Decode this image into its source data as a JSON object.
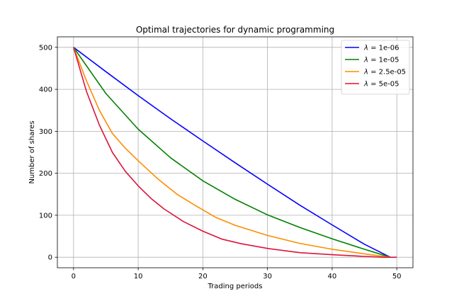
{
  "chart_data": {
    "type": "line",
    "title": "Optimal trajectories for dynamic programming",
    "xlabel": "Trading periods",
    "ylabel": "Number of shares",
    "xlim": [
      -2.5,
      52.5
    ],
    "ylim": [
      -25,
      525
    ],
    "xticks": [
      0,
      10,
      20,
      30,
      40,
      50
    ],
    "yticks": [
      0,
      100,
      200,
      300,
      400,
      500
    ],
    "grid": true,
    "legend_position": "top-right",
    "legend_prefix": "λ",
    "series": [
      {
        "name": "= 1e-06",
        "color": "#0000ff",
        "x": [
          0,
          5,
          10,
          15,
          20,
          25,
          30,
          35,
          40,
          45,
          49
        ],
        "y": [
          500,
          442,
          385,
          330,
          277,
          225,
          174,
          124,
          77,
          31,
          0
        ]
      },
      {
        "name": "= 1e-05",
        "color": "#008000",
        "x": [
          0,
          5,
          10,
          15,
          20,
          25,
          30,
          35,
          40,
          45,
          49
        ],
        "y": [
          500,
          390,
          305,
          237,
          182,
          138,
          101,
          71,
          44,
          19,
          0
        ]
      },
      {
        "name": "= 2.5e-05",
        "color": "#ff8c00",
        "x": [
          0,
          2,
          4,
          6,
          8,
          10,
          13,
          16,
          19,
          22,
          25,
          30,
          35,
          40,
          45,
          49
        ],
        "y": [
          500,
          420,
          350,
          295,
          260,
          230,
          187,
          150,
          122,
          95,
          76,
          52,
          33,
          19,
          8,
          0
        ]
      },
      {
        "name": "= 5e-05",
        "color": "#dc143c",
        "x": [
          0,
          2,
          4,
          6,
          8,
          10,
          12,
          14,
          17,
          20,
          23,
          26,
          30,
          35,
          40,
          45,
          48,
          50
        ],
        "y": [
          500,
          395,
          315,
          250,
          205,
          170,
          140,
          115,
          85,
          62,
          43,
          32,
          21,
          11,
          6,
          2,
          0,
          0
        ]
      }
    ]
  }
}
